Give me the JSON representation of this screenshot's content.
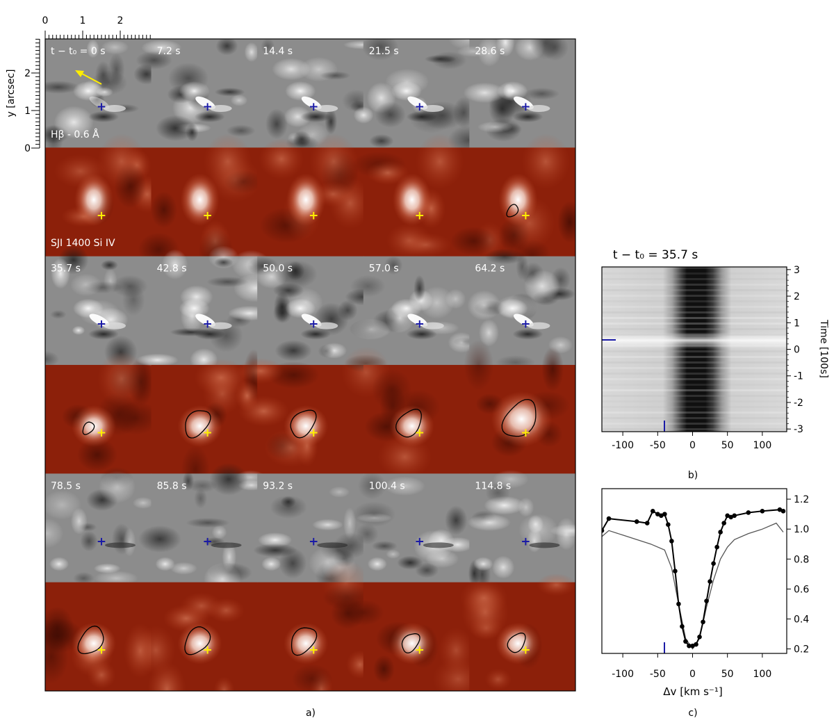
{
  "panel_a": {
    "label": "a)",
    "y_axis_label": "y [arcsec]",
    "x_ticks": [
      "0",
      "1",
      "2"
    ],
    "y_ticks": [
      "0",
      "1",
      "2"
    ],
    "hbeta_label": "Hβ - 0.6 Å",
    "sji_label": "SJI 1400 Si IV",
    "first_time_label": "t − t₀ = 0 s",
    "time_labels": [
      "0 s",
      "7.2 s",
      "14.4 s",
      "21.5 s",
      "28.6 s",
      "35.7 s",
      "42.8 s",
      "50.0 s",
      "57.0 s",
      "64.2 s",
      "78.5 s",
      "85.8 s",
      "93.2 s",
      "100.4 s",
      "114.8 s"
    ],
    "contour_visible": [
      false,
      false,
      false,
      false,
      true,
      true,
      true,
      true,
      true,
      true,
      true,
      true,
      true,
      true,
      true
    ],
    "colors": {
      "marker_hbeta": "#1a1aa6",
      "marker_sji": "#ffee00",
      "arrow": "#ffee00",
      "sji_base": "#8c200a"
    }
  },
  "panel_b": {
    "label": "b)",
    "title": "t − t₀ = 35.7 s",
    "ylabel": "Time [100s]",
    "x_ticks": [
      "-100",
      "-50",
      "0",
      "50",
      "100"
    ],
    "y_ticks": [
      "-3",
      "-2",
      "-1",
      "0",
      "1",
      "2",
      "3"
    ]
  },
  "panel_c": {
    "label": "c)",
    "xlabel": "Δv [km s⁻¹]",
    "x_ticks": [
      "-100",
      "-50",
      "0",
      "50",
      "100"
    ],
    "y_ticks": [
      "0.2",
      "0.4",
      "0.6",
      "0.8",
      "1.0",
      "1.2"
    ]
  },
  "chart_data": [
    {
      "type": "image-grid",
      "rows": [
        "Hβ - 0.6 Å",
        "SJI 1400 Si IV",
        "Hβ - 0.6 Å",
        "SJI 1400 Si IV",
        "Hβ - 0.6 Å",
        "SJI 1400 Si IV"
      ],
      "time_s": [
        0,
        7.2,
        14.4,
        21.5,
        28.6,
        35.7,
        42.8,
        50.0,
        57.0,
        64.2,
        78.5,
        85.8,
        93.2,
        100.4,
        114.8
      ],
      "xlim": [
        0,
        2.8
      ],
      "ylim": [
        0,
        2.9
      ],
      "marker": {
        "x": 1.5,
        "y": 1.1
      }
    },
    {
      "type": "heatmap",
      "title": "t − t₀ = 35.7 s",
      "xlabel": "",
      "ylabel": "Time [100s]",
      "xlim": [
        -130,
        135
      ],
      "ylim": [
        -3.1,
        3.1
      ],
      "marker_time": 0.3,
      "marker_velocity": -36
    },
    {
      "type": "line",
      "xlabel": "Δv [km s⁻¹]",
      "xlim": [
        -130,
        135
      ],
      "ylim": [
        0.17,
        1.27
      ],
      "series": [
        {
          "x": [
            -130,
            -120,
            -80,
            -65,
            -57,
            -50,
            -45,
            -40,
            -35,
            -30,
            -25,
            -20,
            -15,
            -10,
            -5,
            0,
            5,
            10,
            15,
            20,
            25,
            30,
            35,
            40,
            45,
            50,
            55,
            60,
            80,
            100,
            125,
            130
          ],
          "y": [
            0.99,
            1.07,
            1.05,
            1.04,
            1.12,
            1.1,
            1.09,
            1.1,
            1.03,
            0.92,
            0.72,
            0.5,
            0.35,
            0.25,
            0.22,
            0.22,
            0.23,
            0.28,
            0.38,
            0.52,
            0.65,
            0.77,
            0.88,
            0.98,
            1.04,
            1.09,
            1.08,
            1.09,
            1.11,
            1.12,
            1.13,
            1.12
          ]
        },
        {
          "x": [
            -130,
            -120,
            -100,
            -80,
            -60,
            -40,
            -30,
            -20,
            -10,
            0,
            10,
            20,
            30,
            40,
            50,
            60,
            80,
            100,
            120,
            130
          ],
          "y": [
            0.95,
            0.99,
            0.96,
            0.93,
            0.9,
            0.86,
            0.74,
            0.5,
            0.27,
            0.2,
            0.27,
            0.48,
            0.66,
            0.8,
            0.88,
            0.93,
            0.97,
            1.0,
            1.04,
            0.98
          ]
        }
      ],
      "marker_velocity": -36
    }
  ]
}
